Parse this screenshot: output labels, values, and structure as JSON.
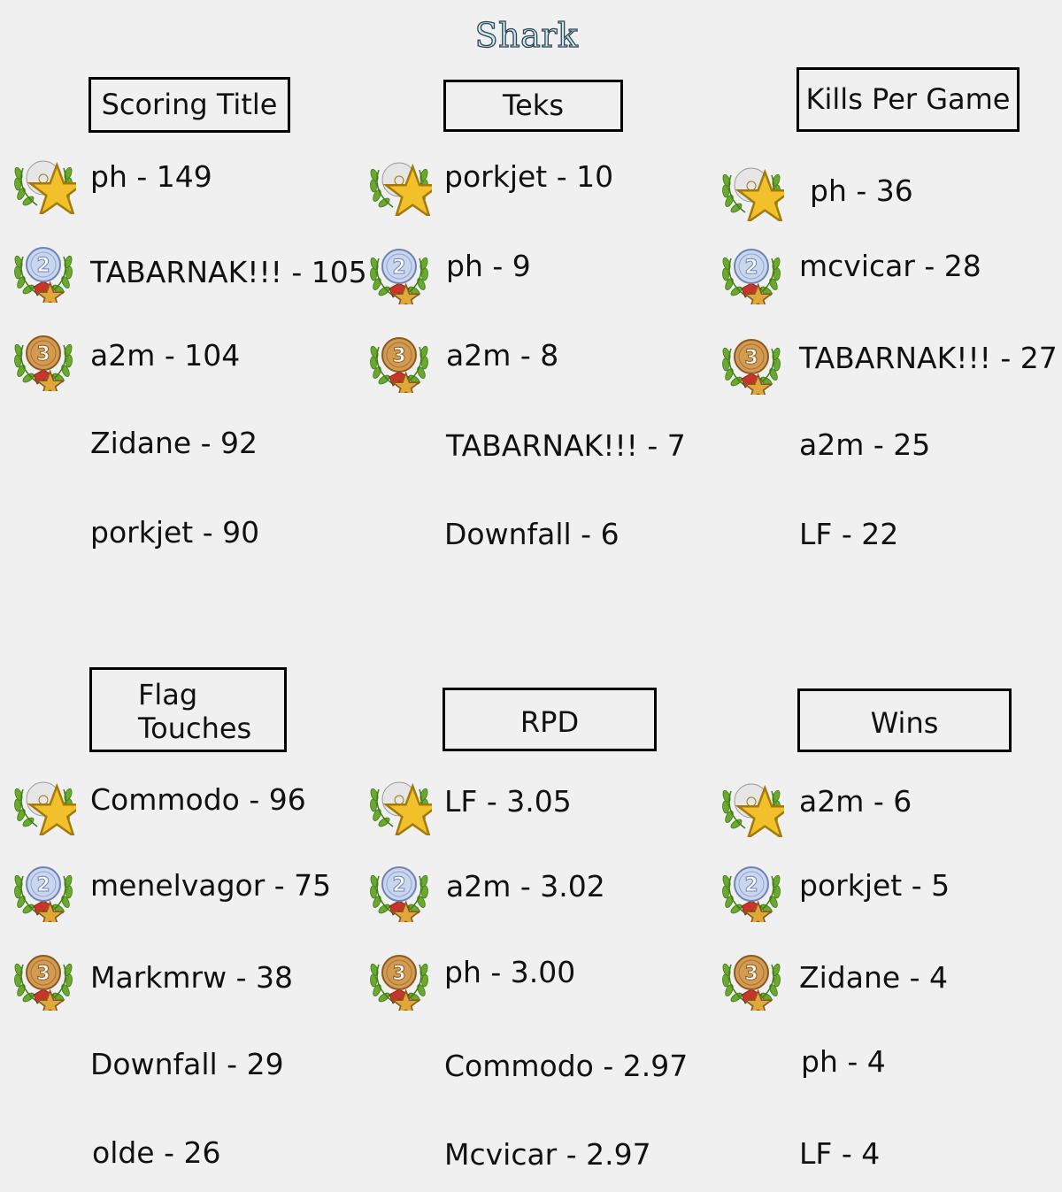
{
  "page_title": "Shark",
  "colors": {
    "gold": "#f2c02b",
    "silver": "#b6c8ea",
    "bronze": "#c98a3c",
    "laurel": "#6aa92e",
    "ribbon": "#c8352b"
  },
  "categories": [
    {
      "title": "Scoring Title",
      "entries": [
        {
          "text": "ph - 149",
          "medal": "gold-medal-icon"
        },
        {
          "text": "TABARNAK!!! - 105",
          "medal": "silver-medal-icon"
        },
        {
          "text": "a2m - 104",
          "medal": "bronze-medal-icon"
        },
        {
          "text": "Zidane - 92"
        },
        {
          "text": "porkjet - 90"
        }
      ]
    },
    {
      "title": "Teks",
      "entries": [
        {
          "text": "porkjet - 10",
          "medal": "gold-medal-icon"
        },
        {
          "text": "ph - 9",
          "medal": "silver-medal-icon"
        },
        {
          "text": "a2m - 8",
          "medal": "bronze-medal-icon"
        },
        {
          "text": "TABARNAK!!! - 7"
        },
        {
          "text": "Downfall - 6"
        }
      ]
    },
    {
      "title": "Kills Per Game",
      "entries": [
        {
          "text": "ph - 36",
          "medal": "gold-medal-icon"
        },
        {
          "text": "mcvicar - 28",
          "medal": "silver-medal-icon"
        },
        {
          "text": "TABARNAK!!! - 27",
          "medal": "bronze-medal-icon"
        },
        {
          "text": "a2m - 25"
        },
        {
          "text": "LF - 22"
        }
      ]
    },
    {
      "title": "Flag Touches",
      "entries": [
        {
          "text": "Commodo - 96",
          "medal": "gold-medal-icon"
        },
        {
          "text": "menelvagor - 75",
          "medal": "silver-medal-icon"
        },
        {
          "text": "Markmrw - 38",
          "medal": "bronze-medal-icon"
        },
        {
          "text": "Downfall - 29"
        },
        {
          "text": "olde - 26"
        }
      ]
    },
    {
      "title": "RPD",
      "entries": [
        {
          "text": "LF - 3.05",
          "medal": "gold-medal-icon"
        },
        {
          "text": "a2m - 3.02",
          "medal": "silver-medal-icon"
        },
        {
          "text": "ph - 3.00",
          "medal": "bronze-medal-icon"
        },
        {
          "text": "Commodo - 2.97"
        },
        {
          "text": "Mcvicar - 2.97"
        }
      ]
    },
    {
      "title": "Wins",
      "entries": [
        {
          "text": "a2m - 6",
          "medal": "gold-medal-icon"
        },
        {
          "text": "porkjet - 5",
          "medal": "silver-medal-icon"
        },
        {
          "text": "Zidane - 4",
          "medal": "bronze-medal-icon"
        },
        {
          "text": "ph - 4"
        },
        {
          "text": "LF - 4"
        }
      ]
    }
  ]
}
